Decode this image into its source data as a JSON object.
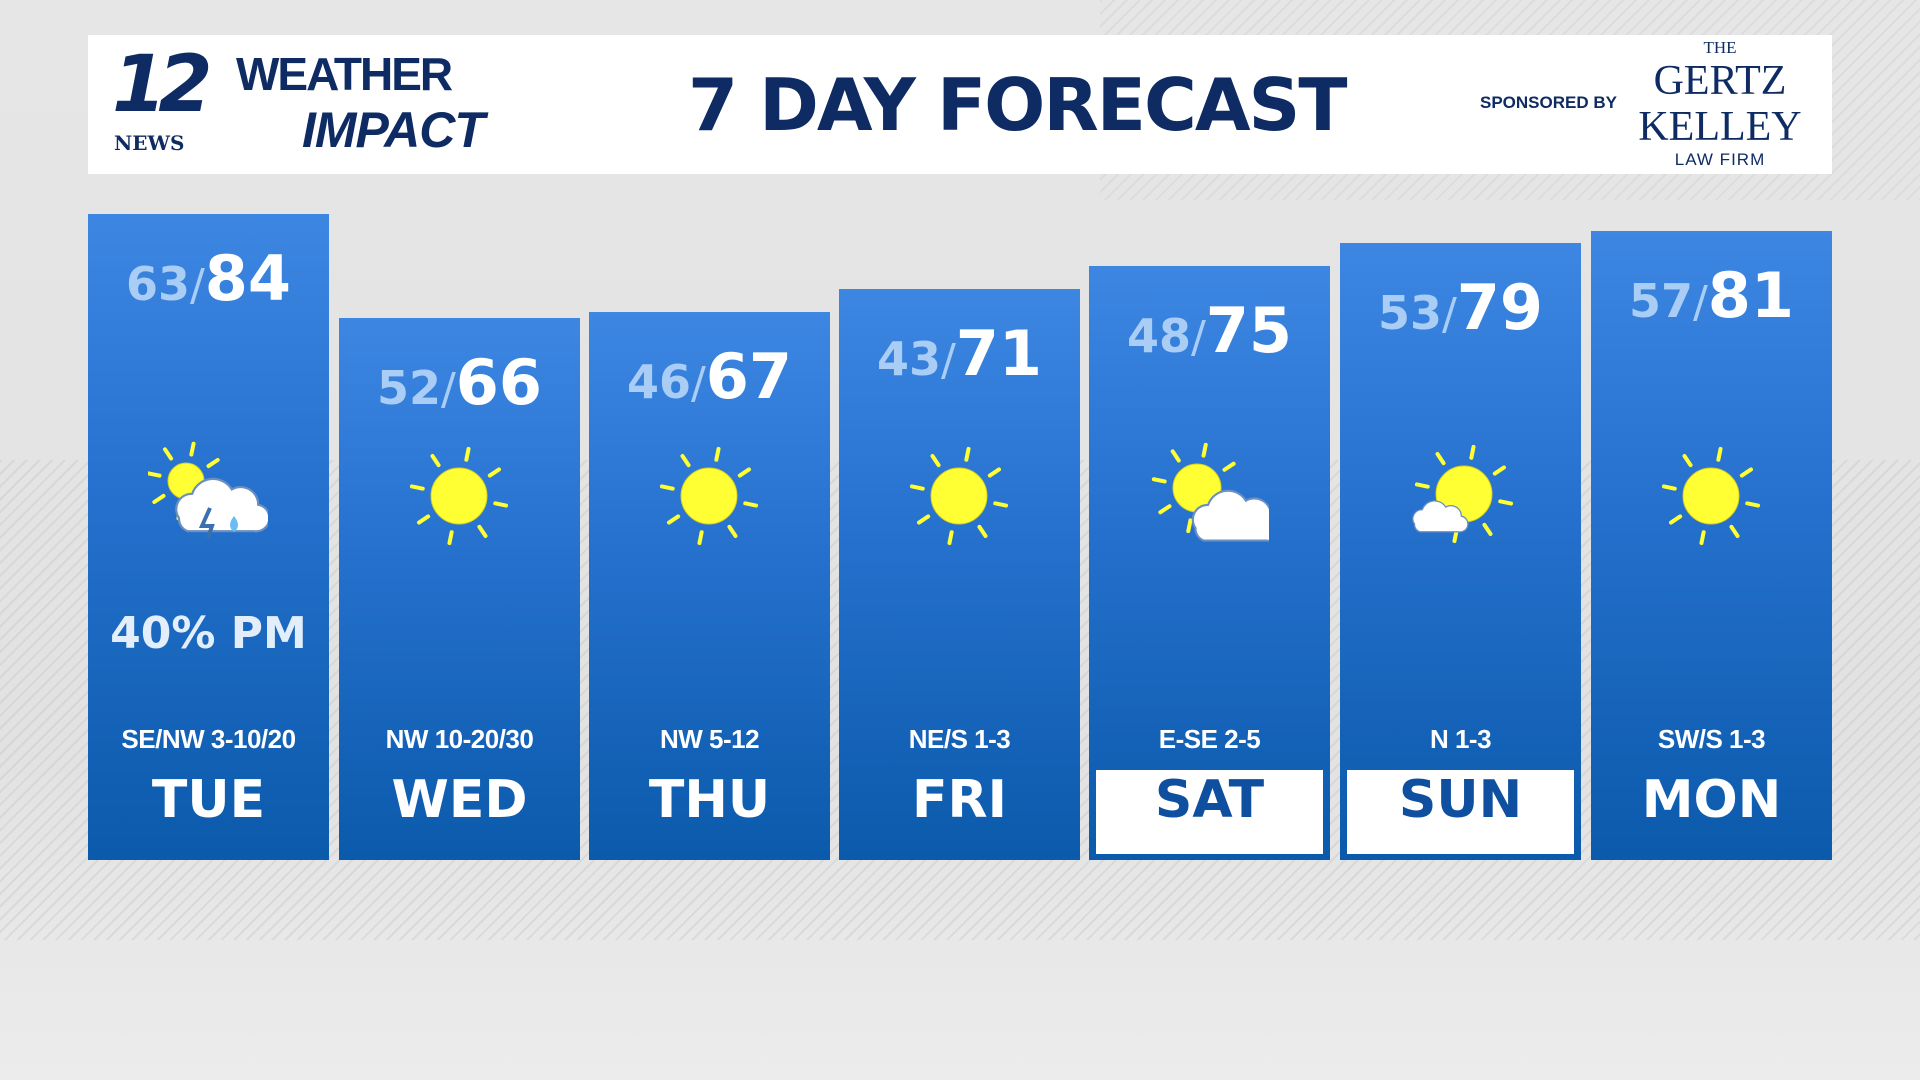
{
  "header": {
    "logo": {
      "number": "12",
      "news": "NEWS",
      "weather": "WEATHER",
      "impact": "IMPACT"
    },
    "title": "7 DAY FORECAST",
    "sponsored_by": "SPONSORED BY",
    "sponsor": {
      "the": "THE",
      "line1": "GERTZ",
      "line2": "KELLEY",
      "line3": "LAW FIRM"
    }
  },
  "colors": {
    "navy": "#0e2b63",
    "column_top": "#3d87e3",
    "column_bottom": "#0b5aab",
    "low_temp": "#a9cdf5",
    "sun": "#ffff33"
  },
  "days": [
    {
      "day": "TUE",
      "low": "63",
      "high": "84",
      "icon": "sun-cloud-thunderstorm-icon",
      "precip": "40% PM",
      "wind": "SE/NW 3-10/20",
      "highlight": false
    },
    {
      "day": "WED",
      "low": "52",
      "high": "66",
      "icon": "sun-icon",
      "precip": "",
      "wind": "NW 10-20/30",
      "highlight": false
    },
    {
      "day": "THU",
      "low": "46",
      "high": "67",
      "icon": "sun-icon",
      "precip": "",
      "wind": "NW 5-12",
      "highlight": false
    },
    {
      "day": "FRI",
      "low": "43",
      "high": "71",
      "icon": "sun-icon",
      "precip": "",
      "wind": "NE/S 1-3",
      "highlight": false
    },
    {
      "day": "SAT",
      "low": "48",
      "high": "75",
      "icon": "partly-cloudy-icon",
      "precip": "",
      "wind": "E-SE 2-5",
      "highlight": true
    },
    {
      "day": "SUN",
      "low": "53",
      "high": "79",
      "icon": "mostly-sunny-icon",
      "precip": "",
      "wind": "N 1-3",
      "highlight": true
    },
    {
      "day": "MON",
      "low": "57",
      "high": "81",
      "icon": "sun-icon",
      "precip": "",
      "wind": "SW/S 1-3",
      "highlight": false
    }
  ]
}
